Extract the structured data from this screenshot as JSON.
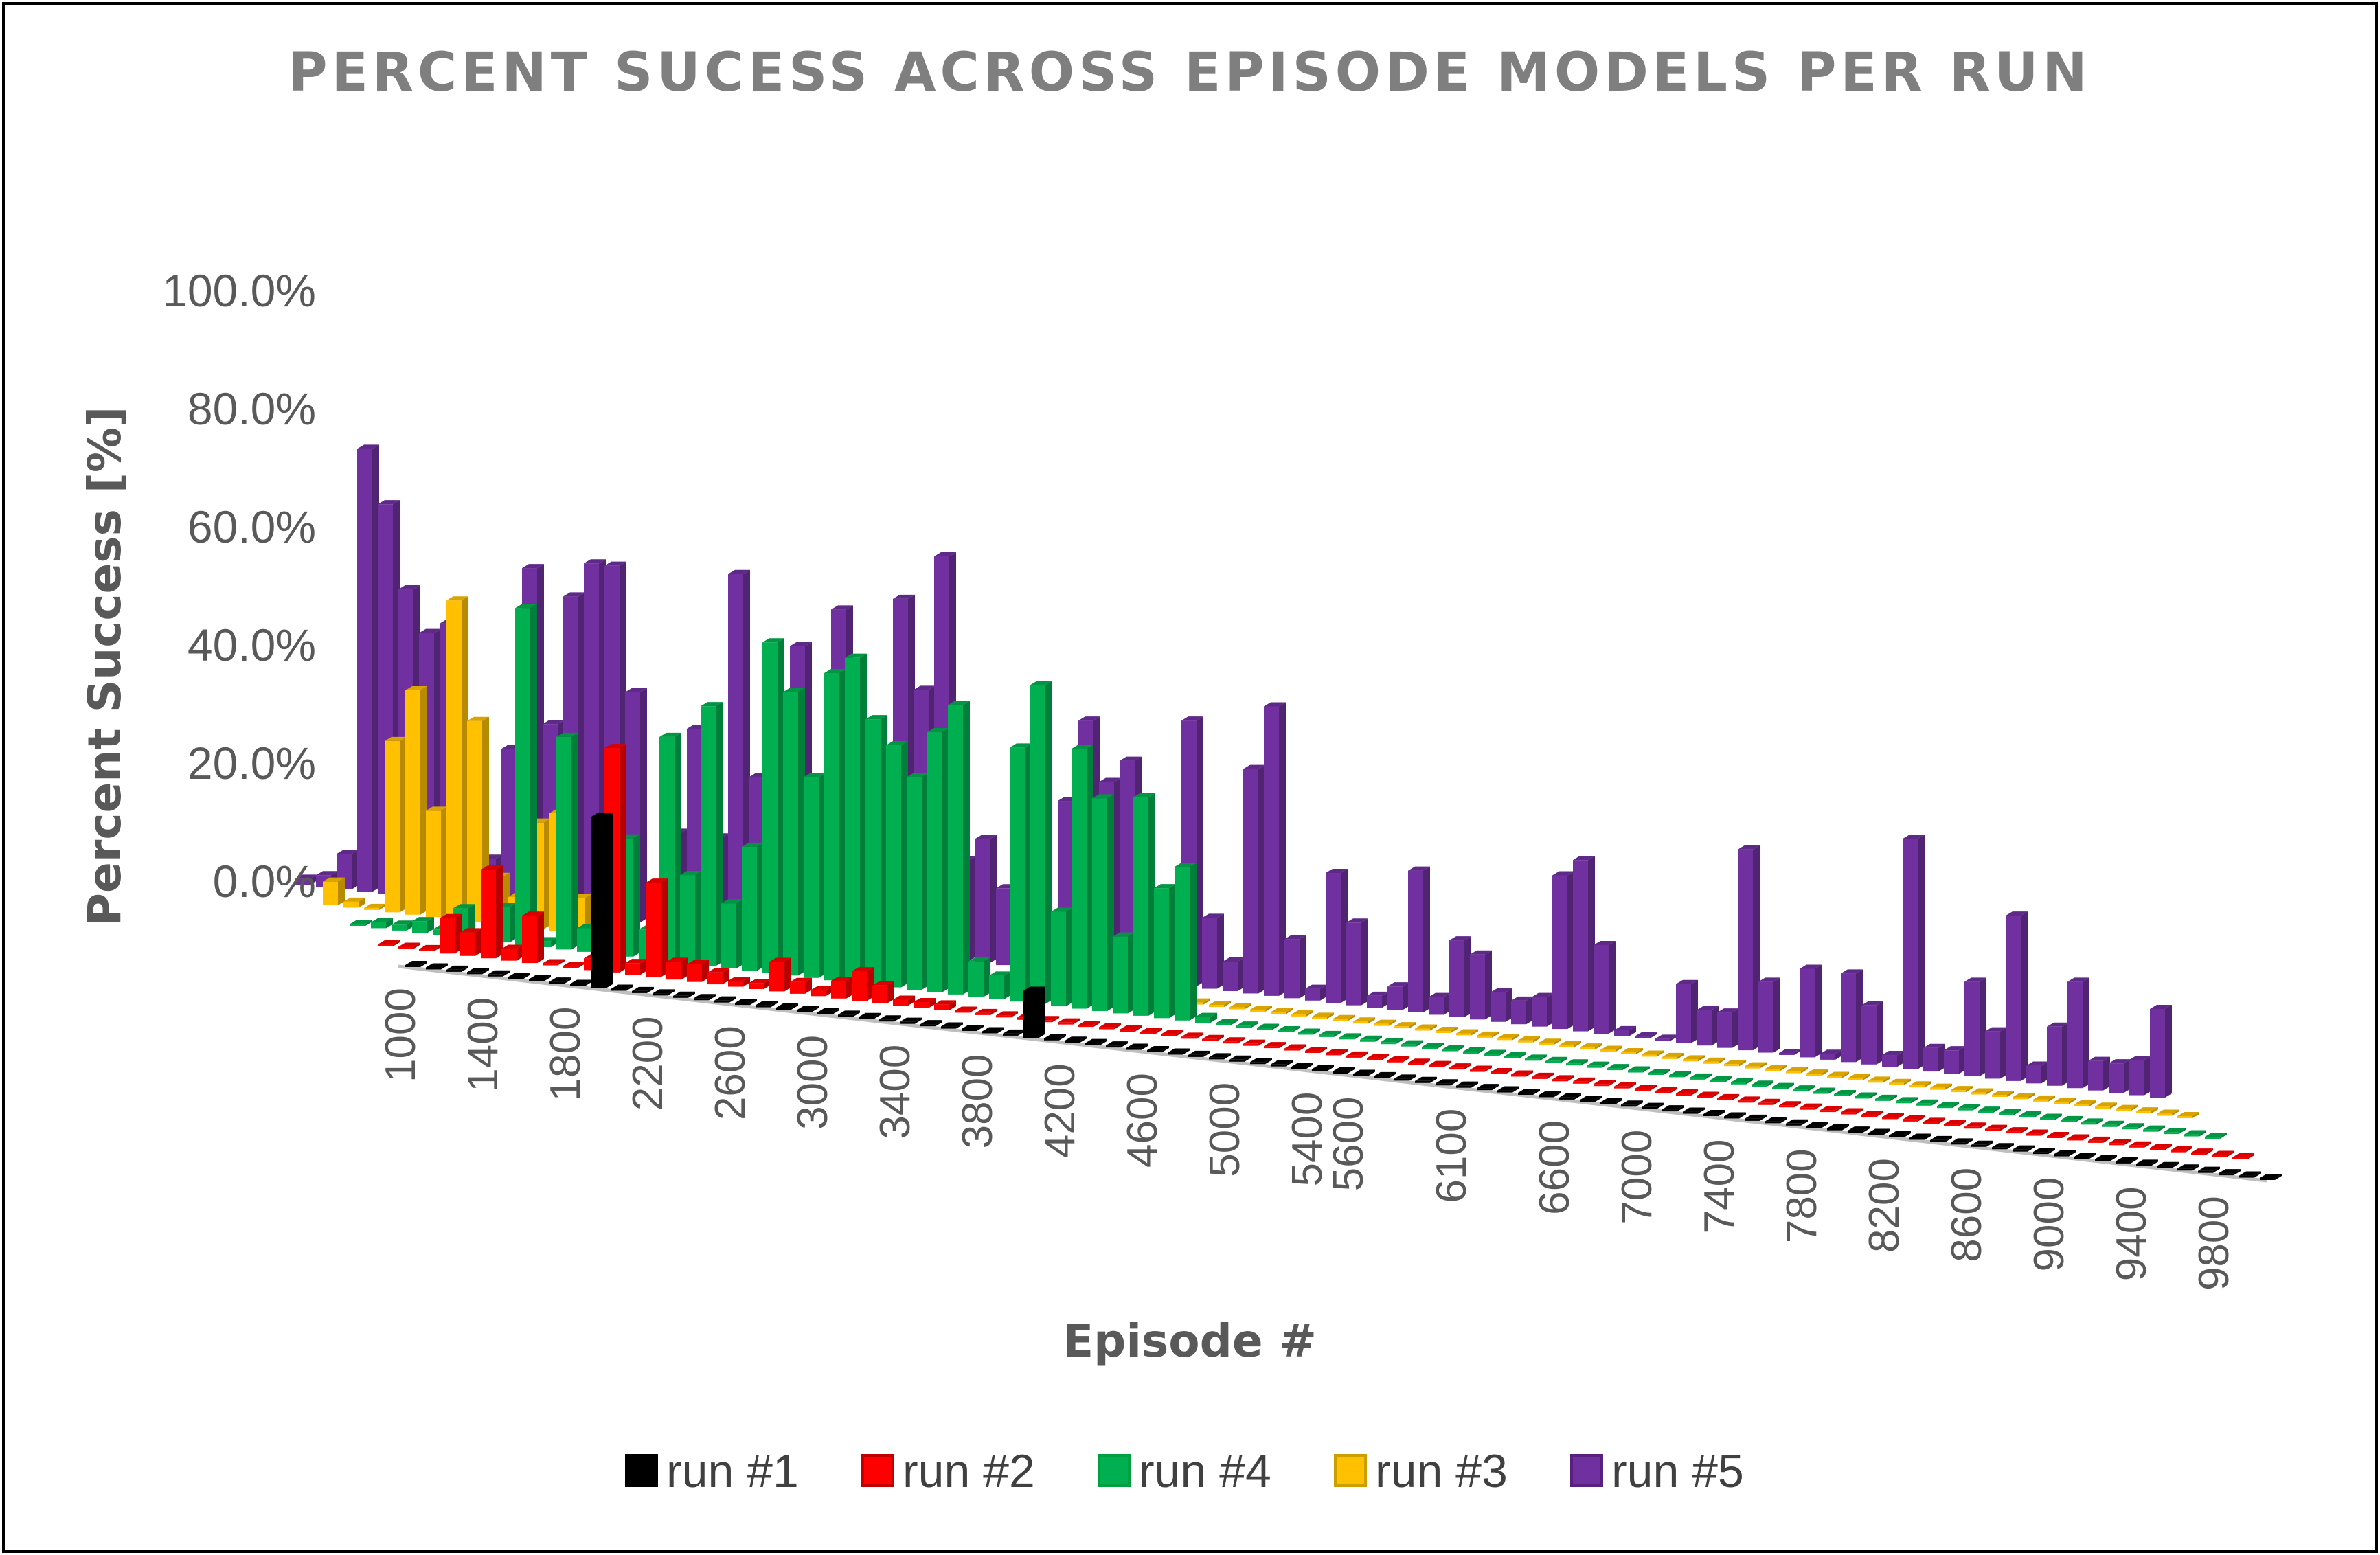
{
  "chart_data": {
    "type": "bar",
    "subtype": "3d-column-depth",
    "title": "PERCENT SUCESS ACROSS EPISODE MODELS PER RUN",
    "xlabel": "Episode #",
    "ylabel": "Percent Success [%]",
    "ylim": [
      0,
      100
    ],
    "y_ticks": [
      "0.0%",
      "20.0%",
      "40.0%",
      "60.0%",
      "80.0%",
      "100.0%"
    ],
    "x_tick_labels": [
      "1000",
      "1400",
      "1800",
      "2200",
      "2600",
      "3000",
      "3400",
      "3800",
      "4200",
      "4600",
      "5000",
      "5400",
      "5600",
      "6100",
      "6600",
      "7000",
      "7400",
      "7800",
      "8200",
      "8600",
      "9000",
      "9400",
      "9800"
    ],
    "categories": [
      1000,
      1100,
      1200,
      1300,
      1400,
      1500,
      1600,
      1700,
      1800,
      1900,
      2000,
      2100,
      2200,
      2300,
      2400,
      2500,
      2600,
      2700,
      2800,
      2900,
      3000,
      3100,
      3200,
      3300,
      3400,
      3500,
      3600,
      3700,
      3800,
      3900,
      4000,
      4100,
      4200,
      4300,
      4400,
      4500,
      4600,
      4700,
      4800,
      4900,
      5000,
      5100,
      5200,
      5300,
      5400,
      5500,
      5600,
      5700,
      5800,
      5900,
      6000,
      6100,
      6200,
      6300,
      6400,
      6500,
      6600,
      6700,
      6800,
      6900,
      7000,
      7100,
      7200,
      7300,
      7400,
      7500,
      7600,
      7700,
      7800,
      7900,
      8000,
      8100,
      8200,
      8300,
      8400,
      8500,
      8600,
      8700,
      8800,
      8900,
      9000,
      9100,
      9200,
      9300,
      9400,
      9500,
      9600,
      9700,
      9800,
      9900,
      10000
    ],
    "grid": false,
    "legend_position": "bottom",
    "series": [
      {
        "name": "run #1",
        "color": "#000000",
        "values": [
          0,
          0,
          0,
          0,
          0,
          0,
          0,
          0,
          0,
          29,
          0,
          0,
          0,
          0,
          0,
          0,
          0,
          0,
          0,
          0,
          0,
          0,
          0,
          0,
          0,
          0,
          0,
          0,
          0,
          0,
          8,
          0,
          0,
          0,
          0,
          0,
          0,
          0,
          0,
          0,
          0,
          0,
          0,
          0,
          0,
          0,
          0,
          0,
          0,
          0,
          0,
          0,
          0,
          0,
          0,
          0,
          0,
          0,
          0,
          0,
          0,
          0,
          0,
          0,
          0,
          0,
          0,
          0,
          0,
          0,
          0,
          0,
          0,
          0,
          0,
          0,
          0,
          0,
          0,
          0,
          0,
          0,
          0,
          0,
          0,
          0,
          0,
          0,
          0,
          0,
          0
        ]
      },
      {
        "name": "run #2",
        "color": "#ff0000",
        "values": [
          0,
          0,
          0,
          6,
          4,
          15,
          2,
          8,
          0,
          0,
          2,
          38,
          2,
          16,
          3,
          3,
          2,
          1,
          1,
          5,
          2,
          1,
          3,
          5,
          3,
          1,
          1,
          1,
          0,
          0,
          0,
          0,
          0,
          0,
          0,
          0,
          0,
          0,
          0,
          0,
          0,
          0,
          0,
          0,
          0,
          0,
          0,
          0,
          0,
          0,
          0,
          0,
          0,
          0,
          0,
          0,
          0,
          0,
          0,
          0,
          0,
          0,
          0,
          0,
          0,
          0,
          0,
          0,
          0,
          0,
          0,
          0,
          0,
          0,
          0,
          0,
          0,
          0,
          0,
          0,
          0,
          0,
          0,
          0,
          0,
          0,
          0,
          0,
          0,
          0,
          0
        ]
      },
      {
        "name": "run #4",
        "color": "#00b050",
        "values": [
          0,
          1,
          1,
          2,
          1,
          5,
          1,
          6,
          57,
          1,
          36,
          4,
          3,
          20,
          5,
          38,
          15,
          44,
          11,
          21,
          56,
          48,
          34,
          52,
          55,
          45,
          41,
          36,
          44,
          49,
          6,
          4,
          43,
          54,
          16,
          44,
          36,
          13,
          37,
          22,
          26,
          1,
          0,
          0,
          0,
          0,
          0,
          0,
          0,
          0,
          0,
          0,
          0,
          0,
          0,
          0,
          0,
          0,
          0,
          0,
          0,
          0,
          0,
          0,
          0,
          0,
          0,
          0,
          0,
          0,
          0,
          0,
          0,
          0,
          0,
          0,
          0,
          0,
          0,
          0,
          0,
          0,
          0,
          0,
          0,
          0,
          0,
          0,
          0,
          0,
          0
        ]
      },
      {
        "name": "run #3",
        "color": "#ffc000",
        "values": [
          4,
          1,
          0,
          29,
          38,
          18,
          54,
          34,
          8,
          5,
          18,
          20,
          6,
          5,
          2,
          1,
          2,
          1,
          0,
          3,
          0,
          0,
          1,
          6,
          1,
          17,
          5,
          1,
          0,
          0,
          0,
          0,
          0,
          0,
          0,
          0,
          0,
          0,
          0,
          0,
          0,
          0,
          0,
          0,
          0,
          0,
          0,
          0,
          0,
          0,
          0,
          0,
          0,
          0,
          0,
          0,
          0,
          0,
          0,
          0,
          0,
          0,
          0,
          0,
          0,
          0,
          0,
          0,
          0,
          0,
          0,
          0,
          0,
          0,
          0,
          0,
          0,
          0,
          0,
          0,
          0,
          0,
          0,
          0,
          0,
          0,
          0,
          0,
          0,
          0,
          0
        ]
      },
      {
        "name": "run #5",
        "color": "#7030a0",
        "values": [
          1,
          2,
          6,
          75,
          66,
          52,
          45,
          47,
          2,
          8,
          27,
          58,
          32,
          54,
          60,
          60,
          39,
          6,
          16,
          34,
          16,
          61,
          27,
          35,
          50,
          16,
          57,
          4,
          34,
          60,
          45,
          68,
          17,
          21,
          13,
          28,
          6,
          29,
          43,
          33,
          37,
          3,
          13,
          45,
          12,
          5,
          38,
          49,
          10,
          2,
          22,
          14,
          2,
          4,
          24,
          3,
          13,
          11,
          5,
          4,
          5,
          26,
          29,
          15,
          1,
          0,
          0,
          10,
          6,
          6,
          34,
          12,
          0,
          15,
          1,
          15,
          10,
          2,
          39,
          4,
          4,
          16,
          8,
          28,
          3,
          10,
          18,
          5,
          5,
          6,
          15
        ]
      }
    ]
  },
  "legend": {
    "items": [
      {
        "label": "run #1",
        "color": "#000000",
        "border": "#000000"
      },
      {
        "label": "run #2",
        "color": "#ff0000",
        "border": "#c00000"
      },
      {
        "label": "run #4",
        "color": "#00b050",
        "border": "#00a040"
      },
      {
        "label": "run #3",
        "color": "#ffc000",
        "border": "#c9a000"
      },
      {
        "label": "run #5",
        "color": "#7030a0",
        "border": "#5a2080"
      }
    ]
  }
}
